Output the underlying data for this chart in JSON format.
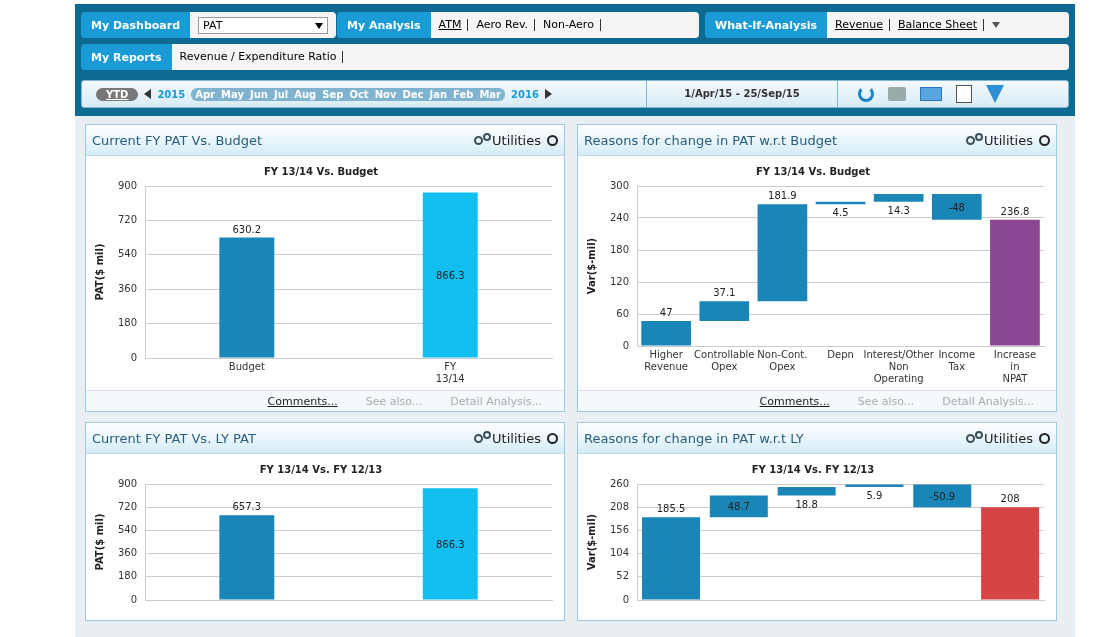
{
  "chart_data": [
    {
      "type": "other",
      "annotations": [
        "My Dashboard",
        "PAT",
        "My Analysis",
        "ATM",
        "Aero Rev.",
        "Non-Aero",
        "What-If-Analysis",
        "Revenue",
        "Balance Sheet",
        "My Reports",
        "Revenue / Expenditure Ratio",
        "YTD",
        "2015",
        "Apr",
        "May",
        "Jun",
        "Jul",
        "Aug",
        "Sep",
        "Oct",
        "Nov",
        "Dec",
        "Jan",
        "Feb",
        "Mar",
        "2016",
        "1/Apr/15 - 25/Sep/15"
      ]
    },
    {
      "type": "bar",
      "title": "Current FY PAT Vs. Budget",
      "subtitle": "FY 13/14 Vs. Budget",
      "ylabel": "PAT($ mil)",
      "categories": [
        "Budget",
        "FY 13/14"
      ],
      "values": [
        630.2,
        866.3
      ],
      "colors": [
        "#1a86b8",
        "#12bef0"
      ],
      "ylim": [
        0,
        900
      ],
      "yticks": [
        0,
        180,
        360,
        540,
        720,
        900
      ],
      "grid": "y",
      "data_labels": true,
      "annotations": [
        "Utilities",
        "Comments...",
        "See also...",
        "Detail Analysis..."
      ]
    },
    {
      "type": "bar",
      "title": "Reasons for change in PAT w.r.t Budget",
      "subtitle": "FY 13/14 Vs. Budget",
      "ylabel": "Var($-mil)",
      "categories": [
        "Higher Revenue",
        "Controllable Opex",
        "Non-Cont. Opex",
        "Depn",
        "Interest/Other Non Operating",
        "Income Tax",
        "Increase in NPAT"
      ],
      "values": [
        47,
        37.1,
        181.9,
        4.5,
        14.3,
        -48,
        236.8
      ],
      "base": [
        0,
        47,
        84.1,
        266,
        270.5,
        284.8,
        0
      ],
      "colors": [
        "#1a86b8",
        "#1a86b8",
        "#1a86b8",
        "#1a86b8",
        "#1a86b8",
        "#1a86b8",
        "#8b4792"
      ],
      "ylim": [
        0,
        300
      ],
      "yticks": [
        0,
        60,
        120,
        180,
        240,
        300
      ],
      "grid": "y",
      "data_labels": true,
      "annotations": [
        "Utilities",
        "Comments...",
        "See also...",
        "Detail Analysis..."
      ]
    },
    {
      "type": "bar",
      "title": "Current FY PAT Vs. LY PAT",
      "subtitle": "FY 13/14 Vs. FY 12/13",
      "ylabel": "PAT($ mil)",
      "categories": [
        null,
        null
      ],
      "values": [
        657.3,
        866.3
      ],
      "colors": [
        "#1a86b8",
        "#12bef0"
      ],
      "ylim": [
        0,
        900
      ],
      "yticks": [
        0,
        180,
        360,
        540,
        720,
        900
      ],
      "grid": "y",
      "data_labels": true,
      "annotations": [
        "Utilities"
      ]
    },
    {
      "type": "bar",
      "title": "Reasons for change in PAT w.r.t LY",
      "subtitle": "FY 13/14 Vs. FY 12/13",
      "ylabel": "Var($-mil)",
      "categories": [
        null,
        null,
        null,
        null,
        null,
        null
      ],
      "values": [
        185.5,
        48.7,
        18.8,
        5.9,
        -50.9,
        208
      ],
      "base": [
        0,
        185.5,
        234.2,
        253,
        258.9,
        0
      ],
      "colors": [
        "#1a86b8",
        "#1a86b8",
        "#1a86b8",
        "#1a86b8",
        "#1a86b8",
        "#d64545"
      ],
      "ylim": [
        0,
        260
      ],
      "yticks": [
        0,
        52,
        104,
        156,
        208,
        260
      ],
      "grid": "y",
      "data_labels": true,
      "annotations": [
        "Utilities"
      ]
    }
  ]
}
